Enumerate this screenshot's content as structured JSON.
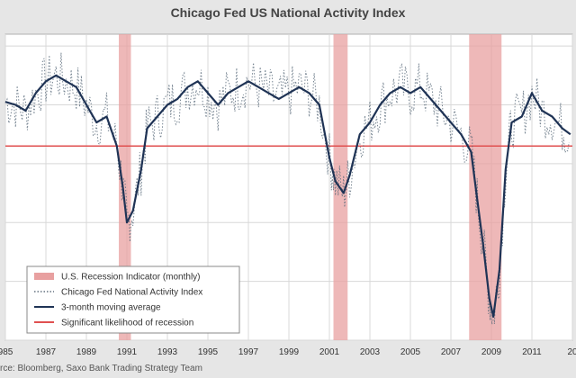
{
  "chart_data": {
    "type": "line",
    "title": "Chicago Fed US National Activity Index",
    "source": "rce: Bloomberg, Saxo Bank Trading Strategy Team",
    "x_ticks": [
      "985",
      "1987",
      "1989",
      "1991",
      "1993",
      "1995",
      "1997",
      "1999",
      "2001",
      "2003",
      "2005",
      "2007",
      "2009",
      "2011",
      "20"
    ],
    "xlim": [
      1985,
      2013
    ],
    "ylim": [
      -4.0,
      1.2
    ],
    "grid": true,
    "legend_position": "bottom-left",
    "legend": [
      {
        "label": "U.S. Recession Indicator (monthly)",
        "style": "band",
        "color": "#e8a0a0"
      },
      {
        "label": "Chicago Fed National Activity Index",
        "style": "dotted",
        "color": "#445566"
      },
      {
        "label": "3-month moving average",
        "style": "line",
        "color": "#1f3355"
      },
      {
        "label": "Significant likelihood of recession",
        "style": "line",
        "color": "#e05050"
      }
    ],
    "recessions": [
      [
        1990.6,
        1991.2
      ],
      [
        2001.2,
        2001.9
      ],
      [
        2007.9,
        2009.5
      ]
    ],
    "threshold": -0.7,
    "series": [
      {
        "name": "3-month moving average",
        "color": "#1f3355",
        "x": [
          1985.0,
          1985.5,
          1986.0,
          1986.5,
          1987.0,
          1987.5,
          1988.0,
          1988.5,
          1989.0,
          1989.5,
          1990.0,
          1990.5,
          1990.8,
          1991.0,
          1991.3,
          1991.7,
          1992.0,
          1992.5,
          1993.0,
          1993.5,
          1994.0,
          1994.5,
          1995.0,
          1995.5,
          1996.0,
          1996.5,
          1997.0,
          1997.5,
          1998.0,
          1998.5,
          1999.0,
          1999.5,
          2000.0,
          2000.5,
          2001.0,
          2001.3,
          2001.7,
          2002.0,
          2002.5,
          2003.0,
          2003.5,
          2004.0,
          2004.5,
          2005.0,
          2005.5,
          2006.0,
          2006.5,
          2007.0,
          2007.5,
          2008.0,
          2008.3,
          2008.6,
          2008.9,
          2009.1,
          2009.4,
          2009.7,
          2010.0,
          2010.5,
          2011.0,
          2011.5,
          2012.0,
          2012.5,
          2012.9
        ],
        "values": [
          0.05,
          0.0,
          -0.1,
          0.2,
          0.4,
          0.5,
          0.4,
          0.3,
          0.0,
          -0.3,
          -0.2,
          -0.7,
          -1.4,
          -2.0,
          -1.8,
          -1.1,
          -0.4,
          -0.2,
          0.0,
          0.1,
          0.3,
          0.4,
          0.2,
          0.0,
          0.2,
          0.3,
          0.4,
          0.3,
          0.2,
          0.1,
          0.2,
          0.3,
          0.2,
          0.0,
          -0.9,
          -1.3,
          -1.5,
          -1.2,
          -0.5,
          -0.3,
          0.0,
          0.2,
          0.3,
          0.2,
          0.3,
          0.1,
          -0.1,
          -0.3,
          -0.5,
          -0.8,
          -1.6,
          -2.4,
          -3.3,
          -3.6,
          -2.8,
          -1.1,
          -0.3,
          -0.2,
          0.2,
          -0.1,
          -0.2,
          -0.4,
          -0.5
        ]
      }
    ]
  }
}
